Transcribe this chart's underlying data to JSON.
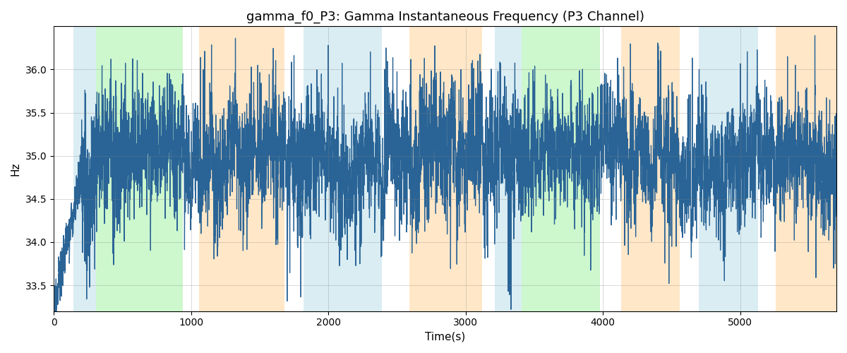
{
  "title": "gamma_f0_P3: Gamma Instantaneous Frequency (P3 Channel)",
  "xlabel": "Time(s)",
  "ylabel": "Hz",
  "xlim": [
    0,
    5700
  ],
  "ylim": [
    33.2,
    36.5
  ],
  "yticks": [
    33.5,
    34.0,
    34.5,
    35.0,
    35.5,
    36.0
  ],
  "xticks": [
    0,
    1000,
    2000,
    3000,
    4000,
    5000
  ],
  "line_color": "#2a6496",
  "line_width": 0.9,
  "bg_regions": [
    {
      "start": 145,
      "end": 310,
      "color": "#add8e6",
      "alpha": 0.45
    },
    {
      "start": 310,
      "end": 940,
      "color": "#90ee90",
      "alpha": 0.45
    },
    {
      "start": 940,
      "end": 1060,
      "color": "#ffffff",
      "alpha": 1.0
    },
    {
      "start": 1060,
      "end": 1680,
      "color": "#ffd59b",
      "alpha": 0.55
    },
    {
      "start": 1680,
      "end": 1820,
      "color": "#ffffff",
      "alpha": 1.0
    },
    {
      "start": 1820,
      "end": 2390,
      "color": "#add8e6",
      "alpha": 0.45
    },
    {
      "start": 2390,
      "end": 2590,
      "color": "#ffffff",
      "alpha": 1.0
    },
    {
      "start": 2590,
      "end": 3120,
      "color": "#ffd59b",
      "alpha": 0.55
    },
    {
      "start": 3120,
      "end": 3210,
      "color": "#ffffff",
      "alpha": 1.0
    },
    {
      "start": 3210,
      "end": 3410,
      "color": "#add8e6",
      "alpha": 0.45
    },
    {
      "start": 3410,
      "end": 3980,
      "color": "#90ee90",
      "alpha": 0.45
    },
    {
      "start": 3980,
      "end": 4130,
      "color": "#ffffff",
      "alpha": 1.0
    },
    {
      "start": 4130,
      "end": 4560,
      "color": "#ffd59b",
      "alpha": 0.55
    },
    {
      "start": 4560,
      "end": 4700,
      "color": "#ffffff",
      "alpha": 1.0
    },
    {
      "start": 4700,
      "end": 5130,
      "color": "#add8e6",
      "alpha": 0.45
    },
    {
      "start": 5130,
      "end": 5260,
      "color": "#ffffff",
      "alpha": 1.0
    },
    {
      "start": 5260,
      "end": 5700,
      "color": "#ffd59b",
      "alpha": 0.55
    }
  ],
  "seed": 12345,
  "n_points": 5600,
  "base_freq": 35.0
}
